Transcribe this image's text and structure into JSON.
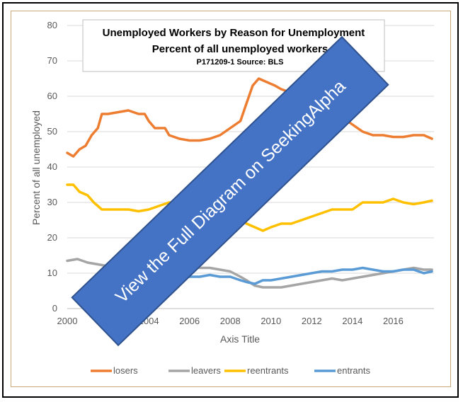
{
  "chart_data": {
    "type": "line",
    "title": "Unemployed Workers by Reason for Unemployment",
    "subtitle": "Percent of all unemployed workers",
    "note": "P171209-1 Source: BLS",
    "xlabel": "Axis Title",
    "ylabel": "Percent of all unemployed",
    "xlim": [
      2000,
      2018
    ],
    "ylim": [
      0,
      80
    ],
    "x_ticks": [
      "2000",
      "2002",
      "2004",
      "2006",
      "2008",
      "2010",
      "2012",
      "2014",
      "2016"
    ],
    "y_ticks": [
      "0",
      "10",
      "20",
      "30",
      "40",
      "50",
      "60",
      "70",
      "80"
    ],
    "grid": "horizontal",
    "legend_position": "bottom",
    "series": [
      {
        "name": "losers",
        "color": "#ed7d31",
        "points": [
          [
            2000.0,
            44
          ],
          [
            2000.3,
            43
          ],
          [
            2000.6,
            45
          ],
          [
            2000.9,
            46
          ],
          [
            2001.2,
            49
          ],
          [
            2001.5,
            51
          ],
          [
            2001.7,
            55
          ],
          [
            2002.0,
            55
          ],
          [
            2002.5,
            55.5
          ],
          [
            2003.0,
            56
          ],
          [
            2003.5,
            55
          ],
          [
            2003.8,
            55
          ],
          [
            2004.0,
            53
          ],
          [
            2004.3,
            51
          ],
          [
            2004.8,
            51
          ],
          [
            2005.0,
            49
          ],
          [
            2005.5,
            48
          ],
          [
            2006.0,
            47.5
          ],
          [
            2006.5,
            47.5
          ],
          [
            2007.0,
            48
          ],
          [
            2007.5,
            49
          ],
          [
            2008.0,
            51
          ],
          [
            2008.5,
            53
          ],
          [
            2008.8,
            58
          ],
          [
            2009.1,
            63
          ],
          [
            2009.4,
            65
          ],
          [
            2009.8,
            64
          ],
          [
            2010.2,
            63
          ],
          [
            2010.5,
            62
          ],
          [
            2011.0,
            61
          ],
          [
            2011.5,
            60
          ],
          [
            2012.0,
            58
          ],
          [
            2012.5,
            57
          ],
          [
            2013.0,
            55
          ],
          [
            2013.5,
            54
          ],
          [
            2014.0,
            52
          ],
          [
            2014.5,
            50
          ],
          [
            2015.0,
            49
          ],
          [
            2015.5,
            49
          ],
          [
            2016.0,
            48.5
          ],
          [
            2016.5,
            48.5
          ],
          [
            2017.0,
            49
          ],
          [
            2017.5,
            49
          ],
          [
            2017.9,
            48
          ]
        ]
      },
      {
        "name": "leavers",
        "color": "#a5a5a5",
        "points": [
          [
            2000.0,
            13.5
          ],
          [
            2000.5,
            14
          ],
          [
            2001.0,
            13
          ],
          [
            2001.5,
            12.5
          ],
          [
            2002.0,
            12
          ],
          [
            2002.5,
            12
          ],
          [
            2003.0,
            11
          ],
          [
            2003.5,
            11
          ],
          [
            2004.0,
            11
          ],
          [
            2004.5,
            11.5
          ],
          [
            2005.0,
            11
          ],
          [
            2005.5,
            11
          ],
          [
            2006.0,
            12
          ],
          [
            2006.5,
            11.5
          ],
          [
            2007.0,
            11.5
          ],
          [
            2007.5,
            11
          ],
          [
            2008.0,
            10.5
          ],
          [
            2008.5,
            9
          ],
          [
            2008.8,
            8
          ],
          [
            2009.2,
            6.5
          ],
          [
            2009.6,
            6
          ],
          [
            2010.0,
            6
          ],
          [
            2010.5,
            6
          ],
          [
            2011.0,
            6.5
          ],
          [
            2011.5,
            7
          ],
          [
            2012.0,
            7.5
          ],
          [
            2012.5,
            8
          ],
          [
            2013.0,
            8.5
          ],
          [
            2013.5,
            8
          ],
          [
            2014.0,
            8.5
          ],
          [
            2014.5,
            9
          ],
          [
            2015.0,
            9.5
          ],
          [
            2015.5,
            10
          ],
          [
            2016.0,
            10.5
          ],
          [
            2016.5,
            11
          ],
          [
            2017.0,
            11.5
          ],
          [
            2017.5,
            11
          ],
          [
            2017.9,
            11
          ]
        ]
      },
      {
        "name": "reentrants",
        "color": "#ffc000",
        "points": [
          [
            2000.0,
            35
          ],
          [
            2000.3,
            35
          ],
          [
            2000.6,
            33
          ],
          [
            2001.0,
            32
          ],
          [
            2001.3,
            30
          ],
          [
            2001.7,
            28
          ],
          [
            2002.0,
            28
          ],
          [
            2002.5,
            28
          ],
          [
            2003.0,
            28
          ],
          [
            2003.5,
            27.5
          ],
          [
            2004.0,
            28
          ],
          [
            2004.5,
            29
          ],
          [
            2005.0,
            30
          ],
          [
            2005.5,
            30
          ],
          [
            2006.0,
            30
          ],
          [
            2007.0,
            29
          ],
          [
            2008.0,
            27
          ],
          [
            2008.8,
            24
          ],
          [
            2009.2,
            23
          ],
          [
            2009.6,
            22
          ],
          [
            2010.0,
            23
          ],
          [
            2010.5,
            24
          ],
          [
            2011.0,
            24
          ],
          [
            2011.5,
            25
          ],
          [
            2012.0,
            26
          ],
          [
            2012.5,
            27
          ],
          [
            2013.0,
            28
          ],
          [
            2013.5,
            28
          ],
          [
            2014.0,
            28
          ],
          [
            2014.5,
            30
          ],
          [
            2015.0,
            30
          ],
          [
            2015.5,
            30
          ],
          [
            2016.0,
            31
          ],
          [
            2016.5,
            30
          ],
          [
            2017.0,
            29.5
          ],
          [
            2017.5,
            30
          ],
          [
            2017.9,
            30.5
          ]
        ]
      },
      {
        "name": "entrants",
        "color": "#5b9bd5",
        "points": [
          [
            2004.0,
            10
          ],
          [
            2004.5,
            10
          ],
          [
            2005.0,
            9.5
          ],
          [
            2005.5,
            9.5
          ],
          [
            2006.0,
            9
          ],
          [
            2006.5,
            9
          ],
          [
            2007.0,
            9.5
          ],
          [
            2007.5,
            9
          ],
          [
            2008.0,
            9
          ],
          [
            2008.5,
            8
          ],
          [
            2008.8,
            7.5
          ],
          [
            2009.2,
            7
          ],
          [
            2009.6,
            8
          ],
          [
            2010.0,
            8
          ],
          [
            2010.5,
            8.5
          ],
          [
            2011.0,
            9
          ],
          [
            2011.5,
            9.5
          ],
          [
            2012.0,
            10
          ],
          [
            2012.5,
            10.5
          ],
          [
            2013.0,
            10.5
          ],
          [
            2013.5,
            11
          ],
          [
            2014.0,
            11
          ],
          [
            2014.5,
            11.5
          ],
          [
            2015.0,
            11
          ],
          [
            2015.5,
            10.5
          ],
          [
            2016.0,
            10.5
          ],
          [
            2016.5,
            11
          ],
          [
            2017.0,
            11
          ],
          [
            2017.5,
            10
          ],
          [
            2017.9,
            10.5
          ]
        ]
      }
    ]
  },
  "banner": {
    "text": "View the Full Diagram on SeekingAlpha",
    "color": "#4472c4"
  }
}
